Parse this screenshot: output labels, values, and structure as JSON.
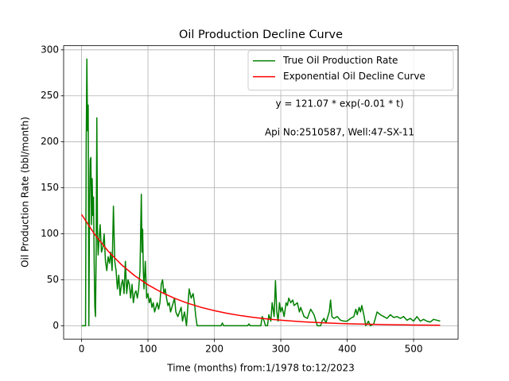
{
  "chart_data": {
    "type": "line",
    "title": "Oil Production Decline Curve",
    "xlabel": "Time (months) from:1/1978 to:12/2023",
    "ylabel": "Oil Production Rate (bbl/month)",
    "annotations": [
      "y = 121.07 * exp(-0.01 * t)",
      "Api No:2510587, Well:47-SX-11"
    ],
    "xlim": [
      -27,
      567
    ],
    "ylim": [
      -14.5,
      304.5
    ],
    "xticks": [
      0,
      100,
      200,
      300,
      400,
      500
    ],
    "yticks": [
      0,
      50,
      100,
      150,
      200,
      250,
      300
    ],
    "grid": true,
    "legend": "upper right",
    "series": [
      {
        "name": "True Oil Production Rate",
        "color": "#008000",
        "x": [
          0,
          6,
          7,
          8,
          9,
          10,
          11,
          12,
          13,
          14,
          15,
          16,
          17,
          18,
          19,
          20,
          21,
          22,
          23,
          24,
          25,
          26,
          28,
          30,
          32,
          34,
          36,
          38,
          40,
          42,
          44,
          46,
          48,
          50,
          52,
          54,
          56,
          58,
          60,
          62,
          64,
          66,
          68,
          70,
          72,
          74,
          76,
          78,
          80,
          82,
          84,
          86,
          88,
          90,
          91,
          92,
          93,
          94,
          96,
          98,
          100,
          102,
          104,
          106,
          108,
          110,
          112,
          114,
          116,
          118,
          120,
          122,
          124,
          126,
          128,
          130,
          132,
          134,
          136,
          140,
          142,
          145,
          150,
          152,
          155,
          158,
          162,
          165,
          168,
          170,
          172,
          174,
          200,
          210,
          212,
          214,
          220,
          240,
          250,
          252,
          254,
          270,
          272,
          275,
          277,
          280,
          282,
          285,
          287,
          290,
          292,
          294,
          296,
          298,
          300,
          302,
          305,
          308,
          310,
          312,
          315,
          318,
          320,
          325,
          328,
          330,
          335,
          340,
          345,
          350,
          355,
          360,
          362,
          365,
          368,
          370,
          373,
          375,
          377,
          380,
          385,
          390,
          395,
          400,
          405,
          410,
          413,
          415,
          418,
          420,
          422,
          425,
          428,
          432,
          435,
          440,
          445,
          450,
          455,
          460,
          465,
          470,
          475,
          480,
          485,
          490,
          495,
          500,
          505,
          510,
          515,
          520,
          525,
          530,
          535,
          540
        ],
        "values": [
          0,
          0,
          200,
          290,
          212,
          240,
          0,
          130,
          180,
          183,
          110,
          160,
          120,
          140,
          70,
          20,
          10,
          80,
          226,
          100,
          77,
          90,
          110,
          80,
          85,
          100,
          70,
          60,
          75,
          68,
          80,
          60,
          130,
          70,
          60,
          40,
          55,
          33,
          45,
          50,
          35,
          70,
          35,
          50,
          45,
          30,
          45,
          25,
          35,
          38,
          30,
          40,
          60,
          143,
          80,
          105,
          60,
          40,
          70,
          30,
          35,
          25,
          30,
          20,
          25,
          15,
          20,
          25,
          18,
          25,
          45,
          50,
          35,
          40,
          30,
          22,
          25,
          15,
          20,
          30,
          15,
          10,
          20,
          5,
          15,
          0,
          40,
          30,
          35,
          25,
          10,
          0,
          0,
          0,
          3,
          0,
          0,
          0,
          0,
          2,
          0,
          0,
          10,
          5,
          0,
          0,
          12,
          5,
          25,
          10,
          49,
          15,
          5,
          25,
          15,
          20,
          10,
          25,
          22,
          30,
          25,
          28,
          22,
          25,
          15,
          20,
          10,
          8,
          18,
          12,
          0,
          0,
          5,
          8,
          3,
          8,
          15,
          28,
          10,
          8,
          10,
          6,
          5,
          5,
          8,
          10,
          18,
          12,
          20,
          15,
          22,
          12,
          0,
          5,
          0,
          2,
          15,
          12,
          10,
          8,
          12,
          9,
          10,
          8,
          10,
          6,
          8,
          5,
          10,
          5,
          7,
          5,
          4,
          7,
          6,
          5
        ]
      },
      {
        "name": "Exponential Oil Decline Curve",
        "color": "#ff0000",
        "x": [
          0,
          20,
          40,
          60,
          80,
          100,
          120,
          140,
          160,
          180,
          200,
          220,
          240,
          260,
          280,
          300,
          320,
          340,
          360,
          380,
          400,
          420,
          440,
          460,
          480,
          500,
          520,
          540
        ],
        "values": [
          121.07,
          99.12,
          81.16,
          66.44,
          54.4,
          44.54,
          36.47,
          29.86,
          24.44,
          20.01,
          16.39,
          13.42,
          10.98,
          8.99,
          7.36,
          6.03,
          4.94,
          4.04,
          3.31,
          2.71,
          2.22,
          1.82,
          1.49,
          1.22,
          1.0,
          0.82,
          0.67,
          0.55
        ]
      }
    ]
  }
}
